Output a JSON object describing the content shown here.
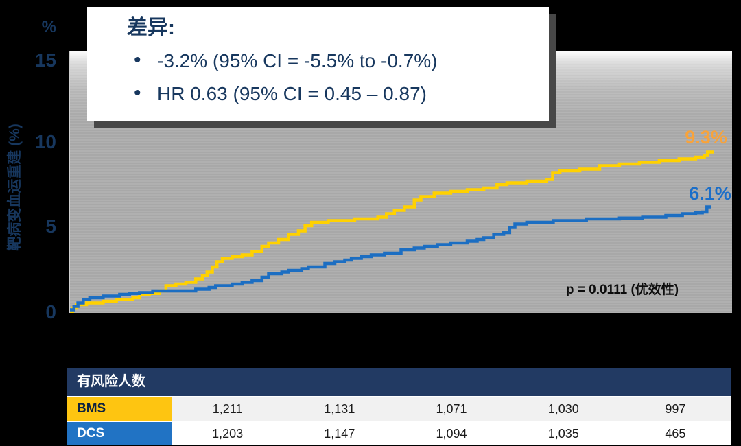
{
  "colors": {
    "background": "#000000",
    "navy_text": "#17375E",
    "plot_background": "#ACACAC",
    "bms_curve_yellow": "#FFD100",
    "bms_end_label_orange": "#F8A33B",
    "dcs_curve_blue": "#1C6EC2",
    "table_header_navy": "#223A63",
    "bms_cell_yellow": "#FEC511",
    "dcs_cell_blue": "#2173C4"
  },
  "y_axis": {
    "unit": "%",
    "label": "靶病变血运重建 (%)",
    "ticks": [
      "15",
      "10",
      "5",
      "0"
    ]
  },
  "callout": {
    "title": "差异:",
    "bullets": [
      "-3.2% (95% CI = -5.5% to -0.7%)",
      "HR 0.63 (95% CI = 0.45 – 0.87)"
    ]
  },
  "plot": {
    "p_value": "p = 0.0111 (优效性)",
    "bms_end_label": "9.3%",
    "dcs_end_label": "6.1%"
  },
  "risk_table": {
    "title": "有风险人数",
    "rows": [
      {
        "label": "BMS",
        "values": [
          "1,211",
          "1,131",
          "1,071",
          "1,030",
          "997"
        ]
      },
      {
        "label": "DCS",
        "values": [
          "1,203",
          "1,147",
          "1,094",
          "1,035",
          "465"
        ]
      }
    ]
  },
  "chart_data": {
    "type": "line",
    "subtype": "step-after-cumulative-incidence",
    "title": "",
    "xlabel": "",
    "ylabel": "靶病变血运重建 (%)",
    "ylim": [
      0,
      15.2
    ],
    "yticks": [
      0,
      5,
      10,
      15
    ],
    "x_unit": "fraction of follow-up axis (no x tick labels shown)",
    "grid": "subtle horizontal stripe banding on gray panel",
    "legend_position": "end-of-curve labels",
    "annotations": [
      "p = 0.0111 (优效性)",
      "差异: -3.2% (95% CI = -5.5% to -0.7%)",
      "HR 0.63 (95% CI = 0.45 – 0.87)"
    ],
    "series": [
      {
        "name": "BMS",
        "color": "#FFD100",
        "end_value_pct": 9.3,
        "end_label": "9.3%",
        "points": [
          [
            0,
            0
          ],
          [
            0.004,
            0.2
          ],
          [
            0.01,
            0.4
          ],
          [
            0.025,
            0.5
          ],
          [
            0.05,
            0.6
          ],
          [
            0.07,
            0.7
          ],
          [
            0.095,
            0.8
          ],
          [
            0.105,
            1.0
          ],
          [
            0.12,
            1.05
          ],
          [
            0.135,
            1.2
          ],
          [
            0.145,
            1.5
          ],
          [
            0.16,
            1.6
          ],
          [
            0.175,
            1.7
          ],
          [
            0.19,
            1.9
          ],
          [
            0.2,
            2.1
          ],
          [
            0.207,
            2.3
          ],
          [
            0.215,
            2.6
          ],
          [
            0.222,
            2.9
          ],
          [
            0.23,
            3.1
          ],
          [
            0.245,
            3.2
          ],
          [
            0.26,
            3.3
          ],
          [
            0.275,
            3.5
          ],
          [
            0.29,
            3.8
          ],
          [
            0.3,
            4.0
          ],
          [
            0.315,
            4.2
          ],
          [
            0.33,
            4.5
          ],
          [
            0.345,
            4.7
          ],
          [
            0.355,
            5.0
          ],
          [
            0.365,
            5.2
          ],
          [
            0.39,
            5.3
          ],
          [
            0.43,
            5.4
          ],
          [
            0.465,
            5.5
          ],
          [
            0.478,
            5.7
          ],
          [
            0.49,
            5.9
          ],
          [
            0.505,
            6.1
          ],
          [
            0.52,
            6.5
          ],
          [
            0.53,
            6.7
          ],
          [
            0.55,
            6.9
          ],
          [
            0.575,
            7.0
          ],
          [
            0.6,
            7.1
          ],
          [
            0.625,
            7.2
          ],
          [
            0.645,
            7.4
          ],
          [
            0.66,
            7.5
          ],
          [
            0.69,
            7.6
          ],
          [
            0.72,
            7.7
          ],
          [
            0.729,
            8.1
          ],
          [
            0.74,
            8.2
          ],
          [
            0.77,
            8.3
          ],
          [
            0.8,
            8.5
          ],
          [
            0.83,
            8.6
          ],
          [
            0.86,
            8.7
          ],
          [
            0.89,
            8.8
          ],
          [
            0.92,
            8.9
          ],
          [
            0.945,
            9.0
          ],
          [
            0.958,
            9.1
          ],
          [
            0.963,
            9.3
          ],
          [
            0.972,
            9.3
          ]
        ]
      },
      {
        "name": "DCS",
        "color": "#1C6EC2",
        "end_value_pct": 6.1,
        "end_label": "6.1%",
        "points": [
          [
            0,
            0.1
          ],
          [
            0.006,
            0.3
          ],
          [
            0.012,
            0.5
          ],
          [
            0.02,
            0.7
          ],
          [
            0.03,
            0.8
          ],
          [
            0.05,
            0.9
          ],
          [
            0.075,
            1.0
          ],
          [
            0.09,
            1.05
          ],
          [
            0.105,
            1.1
          ],
          [
            0.125,
            1.2
          ],
          [
            0.19,
            1.3
          ],
          [
            0.21,
            1.4
          ],
          [
            0.22,
            1.5
          ],
          [
            0.245,
            1.6
          ],
          [
            0.26,
            1.7
          ],
          [
            0.275,
            1.8
          ],
          [
            0.29,
            2.0
          ],
          [
            0.3,
            2.2
          ],
          [
            0.32,
            2.3
          ],
          [
            0.33,
            2.4
          ],
          [
            0.35,
            2.5
          ],
          [
            0.36,
            2.6
          ],
          [
            0.385,
            2.8
          ],
          [
            0.4,
            2.9
          ],
          [
            0.415,
            3.0
          ],
          [
            0.425,
            3.1
          ],
          [
            0.44,
            3.2
          ],
          [
            0.455,
            3.3
          ],
          [
            0.475,
            3.4
          ],
          [
            0.5,
            3.6
          ],
          [
            0.52,
            3.7
          ],
          [
            0.535,
            3.8
          ],
          [
            0.555,
            3.9
          ],
          [
            0.575,
            4.0
          ],
          [
            0.6,
            4.1
          ],
          [
            0.615,
            4.2
          ],
          [
            0.625,
            4.3
          ],
          [
            0.64,
            4.5
          ],
          [
            0.655,
            4.6
          ],
          [
            0.664,
            4.9
          ],
          [
            0.672,
            5.1
          ],
          [
            0.69,
            5.2
          ],
          [
            0.73,
            5.3
          ],
          [
            0.78,
            5.4
          ],
          [
            0.83,
            5.45
          ],
          [
            0.865,
            5.5
          ],
          [
            0.9,
            5.6
          ],
          [
            0.925,
            5.7
          ],
          [
            0.945,
            5.75
          ],
          [
            0.955,
            5.8
          ],
          [
            0.962,
            6.1
          ],
          [
            0.968,
            6.1
          ]
        ]
      }
    ],
    "number_at_risk": {
      "title": "有风险人数",
      "BMS": [
        1211,
        1131,
        1071,
        1030,
        997
      ],
      "DCS": [
        1203,
        1147,
        1094,
        1035,
        465
      ]
    }
  }
}
